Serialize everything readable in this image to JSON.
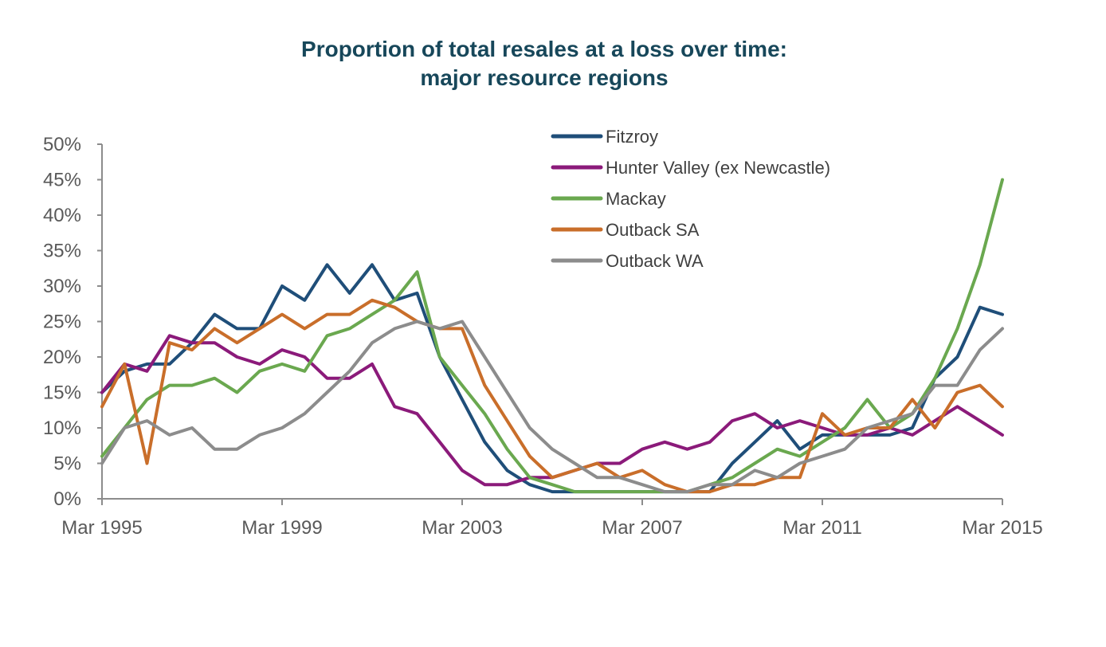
{
  "chart_data": {
    "type": "line",
    "title": "Proportion of total resales at a loss over time:",
    "subtitle": "major resource regions",
    "xlabel": "",
    "ylabel": "",
    "x_tick_labels": [
      "Mar 1995",
      "Mar 1999",
      "Mar 2003",
      "Mar 2007",
      "Mar 2011",
      "Mar 2015"
    ],
    "y_tick_labels": [
      "0%",
      "5%",
      "10%",
      "15%",
      "20%",
      "25%",
      "30%",
      "35%",
      "40%",
      "45%",
      "50%"
    ],
    "xlim": [
      "Mar 1995",
      "Mar 2015"
    ],
    "ylim": [
      0,
      50
    ],
    "y_unit": "%",
    "grid": false,
    "legend_position": "top-right",
    "x": [
      "Mar 1995",
      "Sep 1995",
      "Mar 1996",
      "Sep 1996",
      "Mar 1997",
      "Sep 1997",
      "Mar 1998",
      "Sep 1998",
      "Mar 1999",
      "Sep 1999",
      "Mar 2000",
      "Sep 2000",
      "Mar 2001",
      "Sep 2001",
      "Mar 2002",
      "Sep 2002",
      "Mar 2003",
      "Sep 2003",
      "Mar 2004",
      "Sep 2004",
      "Mar 2005",
      "Sep 2005",
      "Mar 2006",
      "Sep 2006",
      "Mar 2007",
      "Sep 2007",
      "Mar 2008",
      "Sep 2008",
      "Mar 2009",
      "Sep 2009",
      "Mar 2010",
      "Sep 2010",
      "Mar 2011",
      "Sep 2011",
      "Mar 2012",
      "Sep 2012",
      "Mar 2013",
      "Sep 2013",
      "Mar 2014",
      "Sep 2014",
      "Mar 2015"
    ],
    "series": [
      {
        "name": "Fitzroy",
        "color": "#1f4e79",
        "values": [
          15,
          18,
          19,
          19,
          22,
          26,
          24,
          24,
          30,
          28,
          33,
          29,
          33,
          28,
          29,
          20,
          14,
          8,
          4,
          2,
          1,
          1,
          1,
          1,
          1,
          1,
          1,
          1,
          5,
          8,
          11,
          7,
          9,
          9,
          9,
          9,
          10,
          17,
          20,
          27,
          26
        ]
      },
      {
        "name": "Hunter Valley (ex Newcastle)",
        "color": "#8b1a7a",
        "values": [
          15,
          19,
          18,
          23,
          22,
          22,
          20,
          19,
          21,
          20,
          17,
          17,
          19,
          13,
          12,
          8,
          4,
          2,
          2,
          3,
          3,
          4,
          5,
          5,
          7,
          8,
          7,
          8,
          11,
          12,
          10,
          11,
          10,
          9,
          9,
          10,
          9,
          11,
          13,
          11,
          9
        ]
      },
      {
        "name": "Mackay",
        "color": "#6aa84f",
        "values": [
          6,
          10,
          14,
          16,
          16,
          17,
          15,
          18,
          19,
          18,
          23,
          24,
          26,
          28,
          32,
          20,
          16,
          12,
          7,
          3,
          2,
          1,
          1,
          1,
          1,
          1,
          1,
          2,
          3,
          5,
          7,
          6,
          8,
          10,
          14,
          10,
          12,
          17,
          24,
          33,
          45
        ]
      },
      {
        "name": "Outback SA",
        "color": "#c96e2a",
        "values": [
          13,
          19,
          5,
          22,
          21,
          24,
          22,
          24,
          26,
          24,
          26,
          26,
          28,
          27,
          25,
          24,
          24,
          16,
          11,
          6,
          3,
          4,
          5,
          3,
          4,
          2,
          1,
          1,
          2,
          2,
          3,
          3,
          12,
          9,
          10,
          10,
          14,
          10,
          15,
          16,
          13
        ]
      },
      {
        "name": "Outback WA",
        "color": "#8c8c8c",
        "values": [
          5,
          10,
          11,
          9,
          10,
          7,
          7,
          9,
          10,
          12,
          15,
          18,
          22,
          24,
          25,
          24,
          25,
          20,
          15,
          10,
          7,
          5,
          3,
          3,
          2,
          1,
          1,
          2,
          2,
          4,
          3,
          5,
          6,
          7,
          10,
          11,
          12,
          16,
          16,
          21,
          24
        ]
      }
    ]
  }
}
